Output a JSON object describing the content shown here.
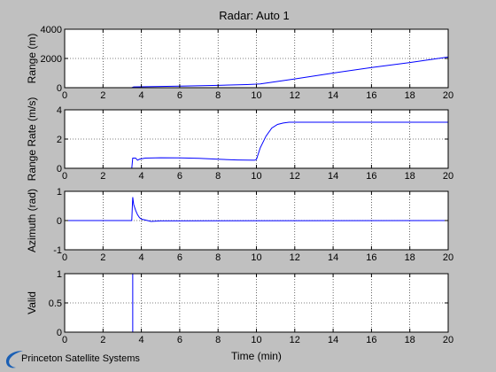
{
  "window": {
    "title": "Radar: Auto 1"
  },
  "logo": {
    "text": "Princeton Satellite Systems",
    "color": "#1a5fb4"
  },
  "colors": {
    "background": "#c0c0c0",
    "axes_bg": "#ffffff",
    "line": "#0000ff",
    "grid": "#000000"
  },
  "chart_data": [
    {
      "type": "line",
      "title": "Radar: Auto 1",
      "ylabel": "Range (m)",
      "xlabel": "",
      "xlim": [
        0,
        20
      ],
      "ylim": [
        0,
        4000
      ],
      "xticks": [
        0,
        2,
        4,
        6,
        8,
        10,
        12,
        14,
        16,
        18,
        20
      ],
      "yticks": [
        0,
        2000,
        4000
      ],
      "grid": true,
      "series": [
        {
          "x": [
            0,
            3.5,
            3.6,
            6,
            8,
            9.5,
            10,
            10.2,
            12,
            14,
            16,
            18,
            20
          ],
          "y": [
            0,
            0,
            50,
            110,
            160,
            210,
            240,
            260,
            600,
            1000,
            1380,
            1720,
            2100
          ]
        }
      ]
    },
    {
      "type": "line",
      "ylabel": "Range Rate (m/s)",
      "xlabel": "",
      "xlim": [
        0,
        20
      ],
      "ylim": [
        0,
        4
      ],
      "xticks": [
        0,
        2,
        4,
        6,
        8,
        10,
        12,
        14,
        16,
        18,
        20
      ],
      "yticks": [
        0,
        2,
        4
      ],
      "grid": true,
      "series": [
        {
          "x": [
            0,
            3.5,
            3.55,
            3.7,
            3.8,
            3.9,
            4.2,
            5,
            6,
            7,
            8,
            9,
            9.9,
            10,
            10.2,
            10.5,
            10.8,
            11.1,
            11.4,
            11.7,
            12,
            13,
            14,
            16,
            18,
            20
          ],
          "y": [
            0,
            0,
            0.7,
            0.7,
            0.55,
            0.62,
            0.7,
            0.72,
            0.71,
            0.68,
            0.62,
            0.57,
            0.55,
            0.6,
            1.4,
            2.2,
            2.75,
            3.0,
            3.1,
            3.15,
            3.15,
            3.15,
            3.15,
            3.15,
            3.15,
            3.15
          ]
        }
      ]
    },
    {
      "type": "line",
      "ylabel": "Azimuth (rad)",
      "xlabel": "",
      "xlim": [
        0,
        20
      ],
      "ylim": [
        -1,
        1
      ],
      "xticks": [
        0,
        2,
        4,
        6,
        8,
        10,
        12,
        14,
        16,
        18,
        20
      ],
      "yticks": [
        -1,
        0,
        1
      ],
      "grid": true,
      "series": [
        {
          "x": [
            0,
            3.5,
            3.55,
            3.6,
            3.7,
            3.8,
            3.9,
            4.0,
            4.2,
            4.5,
            5,
            20
          ],
          "y": [
            0,
            0,
            0.8,
            0.55,
            0.35,
            0.2,
            0.1,
            0.05,
            0.02,
            -0.03,
            -0.01,
            0
          ]
        }
      ]
    },
    {
      "type": "line",
      "ylabel": "Valid",
      "xlabel": "Time (min)",
      "xlim": [
        0,
        20
      ],
      "ylim": [
        0,
        1
      ],
      "xticks": [
        0,
        2,
        4,
        6,
        8,
        10,
        12,
        14,
        16,
        18,
        20
      ],
      "yticks": [
        0,
        0.5,
        1
      ],
      "grid": true,
      "series": [
        {
          "x": [
            0,
            3.55,
            3.55,
            20
          ],
          "y": [
            0,
            0,
            1,
            1
          ]
        }
      ]
    }
  ]
}
